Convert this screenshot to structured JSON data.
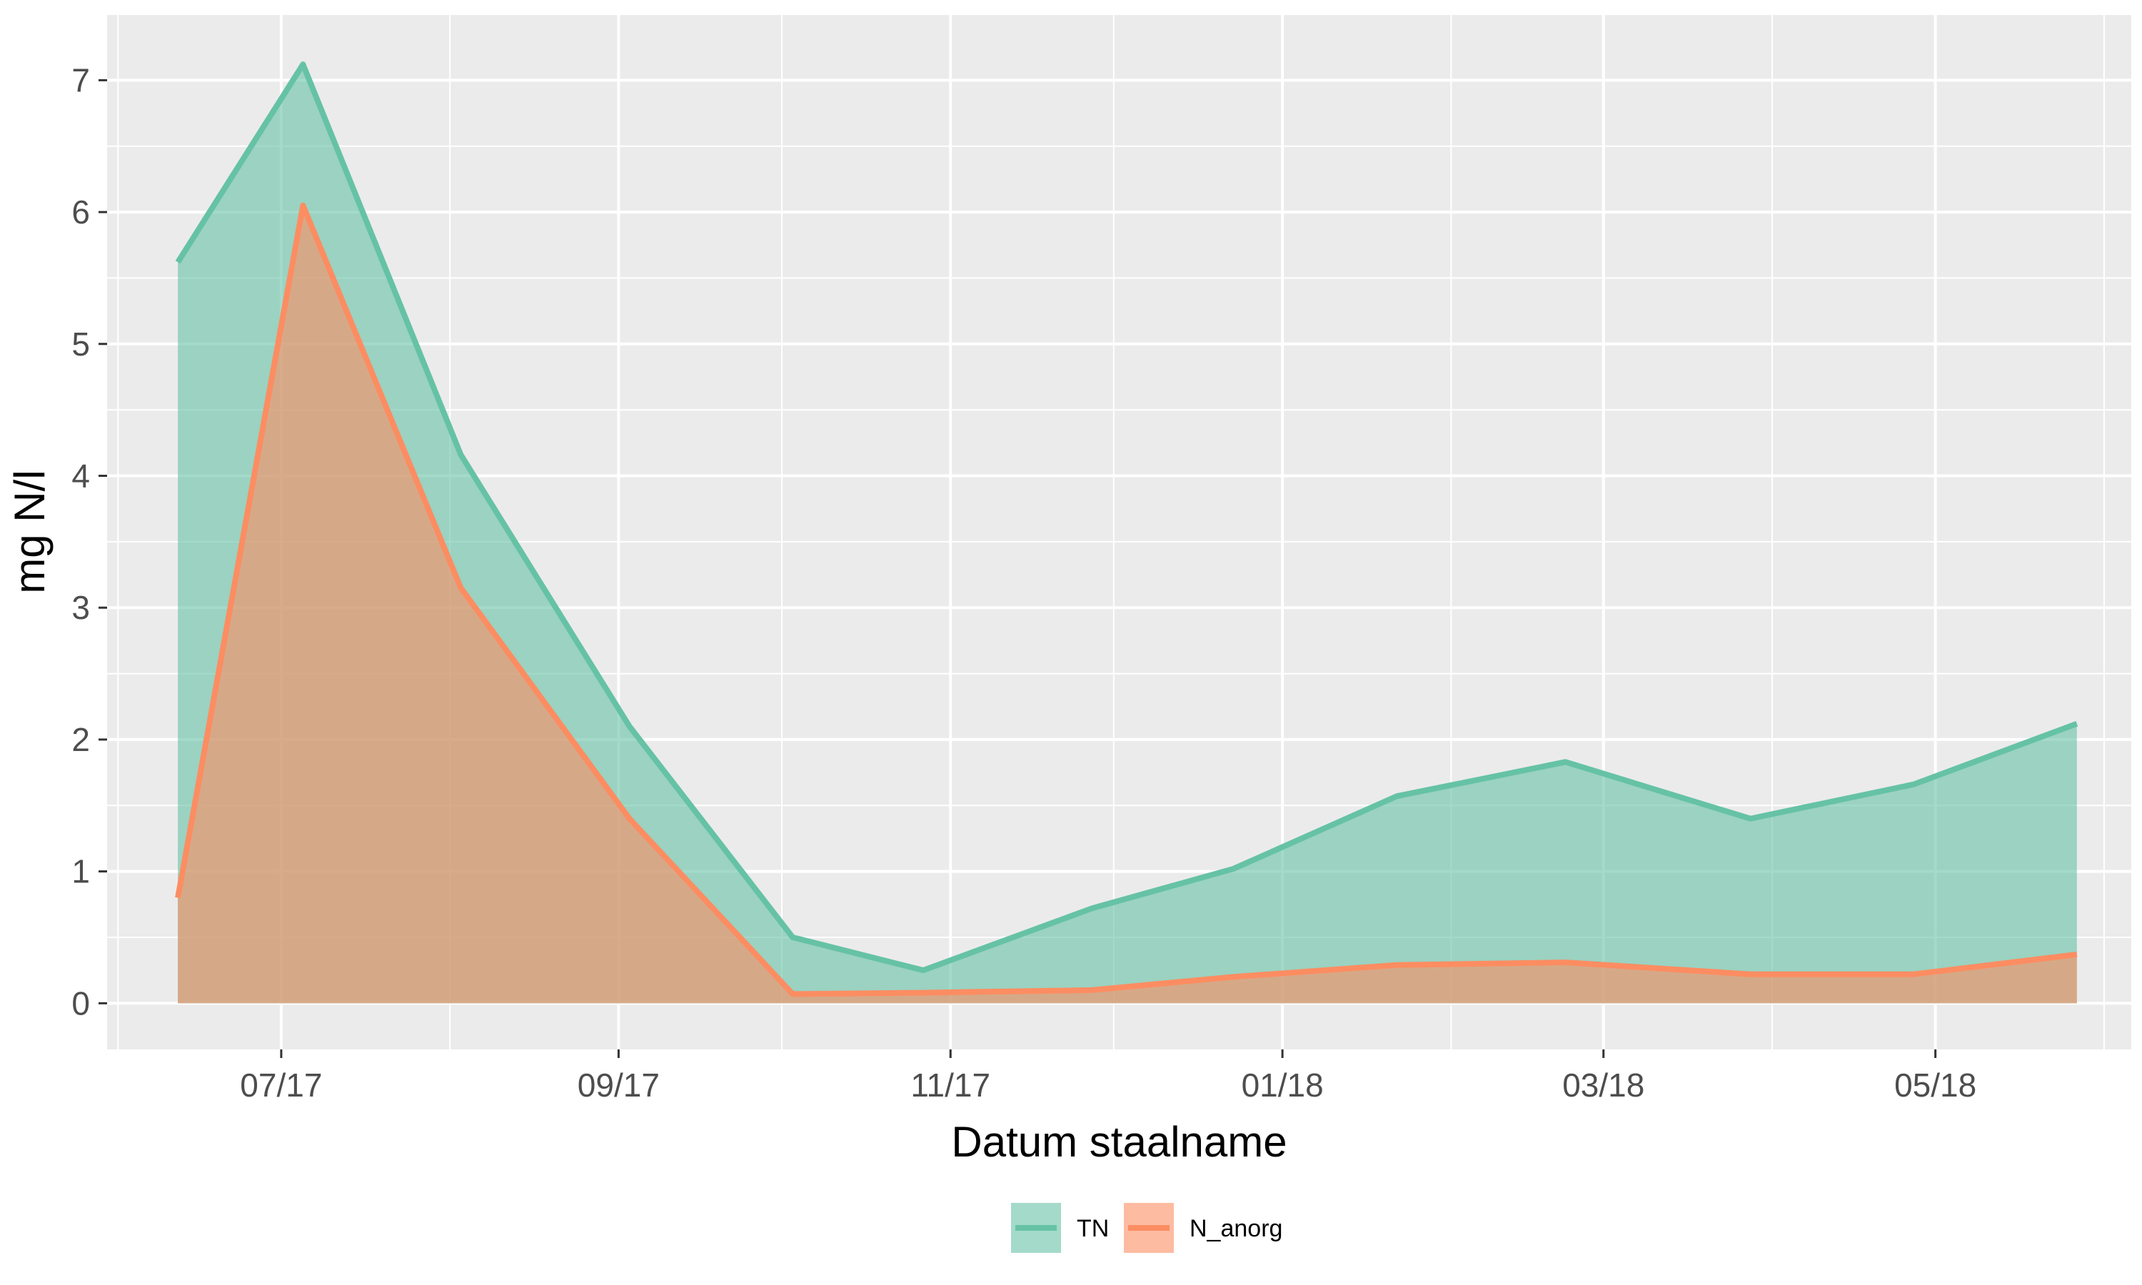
{
  "chart_data": {
    "type": "area",
    "xlabel": "Datum staalname",
    "ylabel": "mg N/l",
    "x_tick_labels": [
      "07/17",
      "09/17",
      "11/17",
      "01/18",
      "03/18",
      "05/18"
    ],
    "x_tick_dates": [
      "2017-07-01",
      "2017-09-01",
      "2017-11-01",
      "2018-01-01",
      "2018-03-01",
      "2018-05-01"
    ],
    "x_minor_dates": [
      "2017-06-01",
      "2017-08-01",
      "2017-10-01",
      "2017-12-01",
      "2018-02-01",
      "2018-04-01",
      "2018-06-01"
    ],
    "y_ticks": [
      0,
      1,
      2,
      3,
      4,
      5,
      6,
      7
    ],
    "xlim": [
      "2017-05-30",
      "2018-06-06"
    ],
    "ylim": [
      -0.35,
      7.5
    ],
    "grid": true,
    "legend_position": "bottom",
    "x": [
      "2017-06-12",
      "2017-07-05",
      "2017-08-03",
      "2017-09-03",
      "2017-10-03",
      "2017-10-27",
      "2017-11-27",
      "2017-12-23",
      "2018-01-22",
      "2018-02-22",
      "2018-03-28",
      "2018-04-27",
      "2018-05-27"
    ],
    "series": [
      {
        "name": "TN",
        "color": "#66C2A5",
        "fill": "#66C2A5",
        "values": [
          5.62,
          7.12,
          4.16,
          2.1,
          0.5,
          0.25,
          0.72,
          1.02,
          1.57,
          1.83,
          1.4,
          1.66,
          2.12
        ]
      },
      {
        "name": "N_anorg",
        "color": "#FC8D62",
        "fill": "#FC8D62",
        "values": [
          0.8,
          6.05,
          3.15,
          1.4,
          0.07,
          0.08,
          0.1,
          0.2,
          0.29,
          0.31,
          0.22,
          0.22,
          0.37
        ]
      }
    ],
    "panel_background": "#EBEBEB",
    "grid_color": "#FFFFFF"
  }
}
